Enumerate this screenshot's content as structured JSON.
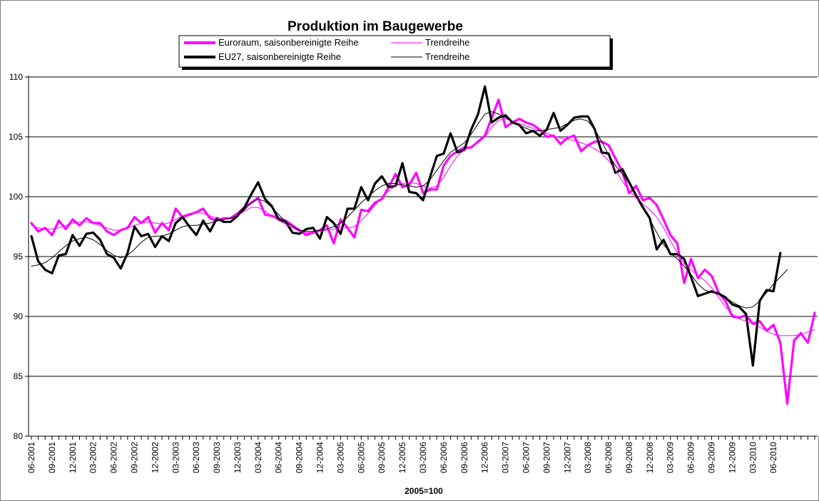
{
  "chart_data": {
    "type": "line",
    "title": "Produktion im Baugewerbe",
    "xlabel": "2005=100",
    "ylim": [
      80,
      110
    ],
    "yticks": [
      80,
      85,
      90,
      95,
      100,
      105,
      110
    ],
    "grid": "horizontal",
    "legend_position": "top",
    "x_tick_labels": [
      "06-2001",
      "09-2001",
      "12-2001",
      "03-2002",
      "06-2002",
      "09-2002",
      "12-2002",
      "03-2003",
      "06-2003",
      "09-2003",
      "12-2003",
      "03-2004",
      "06-2004",
      "09-2004",
      "12-2004",
      "03-2005",
      "06-2005",
      "09-2005",
      "12-2005",
      "03-2006",
      "06-2006",
      "09-2006",
      "12-2006",
      "03-2007",
      "06-2007",
      "09-2007",
      "12-2007",
      "03-2008",
      "06-2008",
      "09-2008",
      "12-2008",
      "03-2009",
      "06-2009",
      "09-2009",
      "12-2009",
      "03-2010",
      "06-2010"
    ],
    "series": [
      {
        "name": "Euroraum, saisonbereinigte Reihe",
        "color": "#ff00ff",
        "style": "thick",
        "values": [
          97.8,
          97.1,
          97.4,
          96.8,
          98.0,
          97.3,
          98.1,
          97.6,
          98.2,
          97.8,
          97.8,
          97.1,
          96.8,
          97.2,
          97.4,
          98.3,
          97.8,
          98.3,
          97.0,
          97.8,
          97.2,
          99.0,
          98.3,
          98.5,
          98.7,
          99.0,
          98.2,
          98.0,
          98.2,
          98.2,
          98.6,
          99.1,
          99.5,
          99.9,
          98.5,
          98.4,
          98.2,
          98.0,
          97.6,
          97.2,
          96.8,
          97.0,
          97.2,
          97.6,
          96.1,
          98.1,
          97.4,
          96.6,
          98.9,
          98.8,
          99.5,
          99.8,
          100.8,
          101.9,
          100.8,
          101.0,
          102.0,
          100.3,
          100.6,
          100.6,
          102.6,
          103.4,
          103.8,
          104.1,
          104.1,
          104.6,
          105.1,
          106.6,
          108.1,
          105.8,
          106.2,
          106.5,
          106.2,
          106.0,
          105.6,
          105.0,
          105.1,
          104.4,
          104.9,
          105.1,
          103.8,
          104.3,
          104.6,
          104.6,
          104.3,
          103.2,
          102.1,
          100.3,
          100.9,
          99.7,
          99.9,
          99.3,
          98.1,
          96.8,
          96.1,
          92.8,
          94.8,
          93.2,
          93.9,
          93.4,
          92.0,
          91.3,
          90.0,
          89.9,
          90.1,
          89.4,
          89.6,
          88.8,
          89.3,
          87.8,
          82.7,
          88.0,
          88.6,
          87.8,
          90.3
        ]
      },
      {
        "name": "Trendreihe",
        "color": "#ff00ff",
        "style": "thin",
        "values": [
          97.6,
          97.4,
          97.3,
          97.3,
          97.4,
          97.6,
          97.8,
          97.9,
          97.9,
          97.8,
          97.6,
          97.4,
          97.2,
          97.2,
          97.4,
          97.6,
          97.8,
          97.9,
          97.8,
          97.7,
          97.8,
          98.1,
          98.4,
          98.6,
          98.7,
          98.6,
          98.4,
          98.2,
          98.1,
          98.2,
          98.4,
          98.8,
          99.1,
          99.1,
          98.8,
          98.4,
          98.0,
          97.7,
          97.4,
          97.1,
          97.0,
          97.0,
          97.1,
          97.2,
          97.3,
          97.4,
          97.4,
          97.5,
          98.0,
          98.6,
          99.3,
          99.9,
          100.5,
          100.9,
          101.1,
          101.2,
          101.1,
          100.9,
          100.7,
          100.9,
          101.6,
          102.6,
          103.4,
          103.9,
          104.2,
          104.5,
          105.0,
          105.8,
          106.4,
          106.5,
          106.3,
          106.1,
          105.9,
          105.7,
          105.5,
          105.3,
          105.1,
          104.9,
          104.8,
          104.7,
          104.5,
          104.3,
          104.0,
          103.6,
          103.0,
          102.2,
          101.3,
          100.5,
          99.9,
          99.4,
          98.9,
          98.3,
          97.4,
          96.3,
          95.3,
          94.4,
          93.9,
          93.4,
          93.0,
          92.4,
          91.6,
          90.8,
          90.2,
          89.8,
          89.6,
          89.4,
          89.1,
          88.8,
          88.5,
          88.4,
          88.4,
          88.4,
          88.5,
          88.7,
          88.9
        ]
      },
      {
        "name": "EU27, saisonbereinigte Reihe",
        "color": "#000000",
        "style": "thick",
        "values": [
          96.7,
          94.6,
          93.9,
          93.6,
          95.1,
          95.2,
          96.8,
          95.9,
          96.9,
          97.0,
          96.4,
          95.2,
          94.9,
          94.0,
          95.3,
          97.5,
          96.7,
          96.9,
          95.8,
          96.7,
          96.3,
          97.8,
          98.3,
          97.5,
          96.8,
          98.0,
          97.1,
          98.2,
          97.9,
          97.9,
          98.4,
          99.1,
          100.2,
          101.2,
          99.8,
          99.2,
          98.1,
          97.9,
          97.0,
          96.9,
          97.3,
          97.4,
          96.5,
          98.3,
          97.8,
          96.9,
          99.0,
          99.0,
          100.8,
          99.7,
          101.1,
          101.7,
          100.8,
          100.9,
          102.8,
          100.4,
          100.3,
          99.7,
          101.6,
          103.4,
          103.6,
          105.3,
          103.7,
          103.9,
          105.6,
          106.9,
          109.2,
          106.2,
          106.6,
          106.8,
          106.2,
          106.0,
          105.3,
          105.5,
          105.1,
          105.6,
          107.0,
          105.5,
          106.0,
          106.6,
          106.7,
          106.7,
          105.6,
          103.7,
          103.6,
          102.0,
          102.3,
          101.2,
          100.1,
          99.1,
          98.2,
          95.6,
          96.4,
          95.2,
          95.2,
          94.8,
          93.3,
          91.7,
          91.9,
          92.1,
          91.9,
          91.6,
          91.0,
          90.8,
          90.2,
          85.9,
          91.3,
          92.2,
          92.1,
          95.3
        ]
      },
      {
        "name": "Trendreihe",
        "color": "#000000",
        "style": "thin",
        "values": [
          94.2,
          94.3,
          94.5,
          94.9,
          95.4,
          95.9,
          96.3,
          96.5,
          96.6,
          96.4,
          96.0,
          95.5,
          95.1,
          94.9,
          95.1,
          95.6,
          96.2,
          96.6,
          96.7,
          96.7,
          96.9,
          97.2,
          97.5,
          97.6,
          97.6,
          97.7,
          97.8,
          98.0,
          98.1,
          98.2,
          98.4,
          98.9,
          99.5,
          99.8,
          99.6,
          99.1,
          98.5,
          97.9,
          97.5,
          97.2,
          97.1,
          97.1,
          97.2,
          97.3,
          97.5,
          97.8,
          98.3,
          98.9,
          99.5,
          100.0,
          100.5,
          100.9,
          101.1,
          101.1,
          101.0,
          100.9,
          100.8,
          100.9,
          101.4,
          102.2,
          103.0,
          103.7,
          104.1,
          104.5,
          105.2,
          106.1,
          106.9,
          107.1,
          106.9,
          106.6,
          106.3,
          106.0,
          105.7,
          105.5,
          105.5,
          105.6,
          105.7,
          105.8,
          106.1,
          106.4,
          106.5,
          106.3,
          105.6,
          104.6,
          103.5,
          102.6,
          101.9,
          101.1,
          100.2,
          99.2,
          98.1,
          97.0,
          96.0,
          95.3,
          94.8,
          94.2,
          93.5,
          92.7,
          92.2,
          92.0,
          91.9,
          91.6,
          91.2,
          90.9,
          90.7,
          90.8,
          91.3,
          92.0,
          92.7,
          93.3,
          93.9
        ]
      }
    ]
  }
}
